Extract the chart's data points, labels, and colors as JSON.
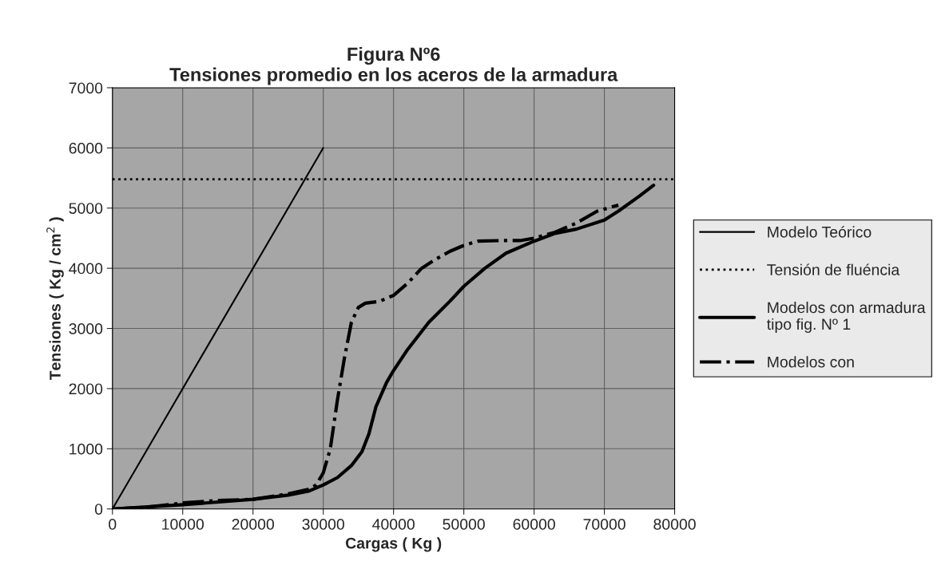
{
  "chart_data": {
    "type": "line",
    "title": "Figura Nº6\nTensiones promedio en los aceros de la armadura",
    "xlabel": "Cargas ( Kg )",
    "ylabel": "Tensiones ( Kg / cm$^{2}$ )",
    "xlim": [
      0,
      80000
    ],
    "xticks": [
      0,
      10000,
      20000,
      30000,
      40000,
      50000,
      60000,
      70000,
      80000
    ],
    "ylim": [
      0,
      7000
    ],
    "yticks": [
      0,
      1000,
      2000,
      3000,
      4000,
      5000,
      6000,
      7000
    ],
    "grid": true,
    "legend": "right",
    "series": [
      {
        "name": "Modelo Teórico",
        "color": "#000000",
        "line_style": "solid",
        "x": [
          0,
          30000
        ],
        "values": [
          0,
          6000
        ]
      },
      {
        "name": "Tensión de fluéncia",
        "color": "#000000",
        "line_style": "dotted",
        "x": [
          0,
          80000
        ],
        "values": [
          5480,
          5480
        ]
      },
      {
        "name": "Modelos con armadura tipo fig. Nº 1",
        "color": "#000000",
        "line_style": "solid",
        "x": [
          0,
          10000,
          20000,
          25000,
          28000,
          30000,
          32000,
          34000,
          35500,
          36500,
          37500,
          39000,
          40000,
          42000,
          45000,
          48000,
          50000,
          53000,
          56000,
          60000,
          63000,
          66000,
          70000,
          72000,
          75000,
          77000
        ],
        "values": [
          0,
          70,
          160,
          230,
          300,
          400,
          520,
          720,
          950,
          1250,
          1700,
          2100,
          2300,
          2650,
          3100,
          3450,
          3700,
          4000,
          4250,
          4450,
          4580,
          4650,
          4800,
          4950,
          5200,
          5380
        ]
      },
      {
        "name": "Modelos con",
        "color": "#000000",
        "line_style": "dashdot",
        "x": [
          0,
          5000,
          10000,
          15000,
          20000,
          25000,
          28000,
          29000,
          30000,
          31000,
          32000,
          33000,
          34000,
          35000,
          36000,
          38000,
          40000,
          42000,
          44000,
          46000,
          48000,
          50000,
          52000,
          55000,
          58000,
          60000,
          63000,
          66000,
          69000,
          72000
        ],
        "values": [
          0,
          30,
          100,
          140,
          160,
          250,
          330,
          400,
          600,
          1000,
          1800,
          2500,
          3100,
          3350,
          3420,
          3450,
          3550,
          3750,
          4000,
          4150,
          4280,
          4380,
          4450,
          4460,
          4460,
          4500,
          4600,
          4750,
          4950,
          5050
        ]
      }
    ]
  }
}
